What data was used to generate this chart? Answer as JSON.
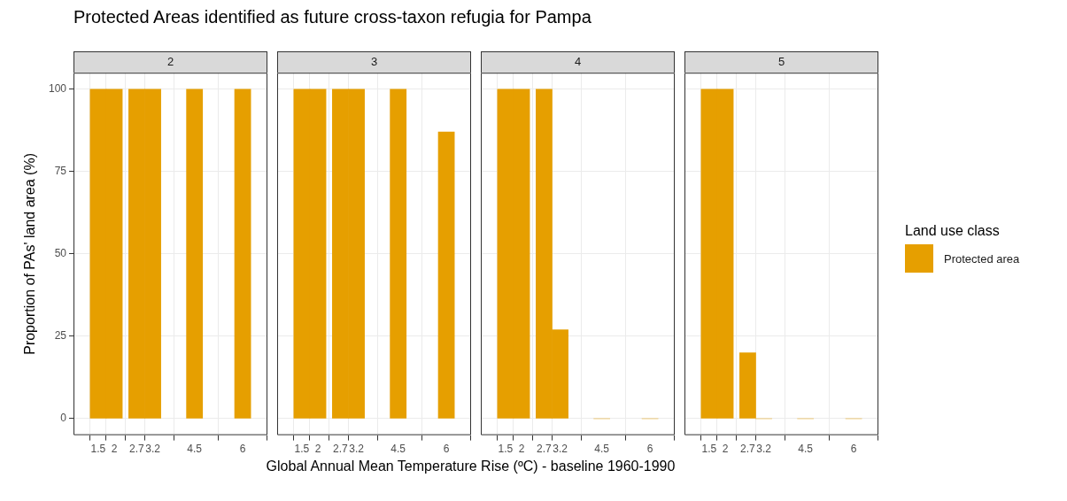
{
  "chart_data": [
    {
      "type": "bar",
      "title": "2",
      "annotations": [
        "Protected Areas identified as future cross-taxon refugia for Pampa"
      ],
      "xlabel": "Global Annual Mean Temperature Rise (ºC) - baseline 1960-1990",
      "ylabel": "Proportion of PAs' land area (%)",
      "x": [
        1.5,
        2,
        2.7,
        3.2,
        4.5,
        6
      ],
      "series": [
        {
          "color": "#e69f00",
          "values": [
            100,
            100,
            100,
            100,
            100,
            100
          ]
        }
      ],
      "xlim": [
        0.73,
        6.77
      ],
      "xticks": [
        1.5,
        2,
        2.7,
        3.2,
        4.5,
        6
      ],
      "ylim": [
        -5,
        105
      ],
      "yticks": [
        0,
        25,
        50,
        75,
        100
      ],
      "grid": true
    },
    {
      "type": "bar",
      "title": "3",
      "x": [
        1.5,
        2,
        2.7,
        3.2,
        4.5,
        6
      ],
      "series": [
        {
          "color": "#e69f00",
          "values": [
            100,
            100,
            100,
            100,
            100,
            87
          ]
        }
      ],
      "xlim": [
        0.73,
        6.77
      ],
      "xticks": [
        1.5,
        2,
        2.7,
        3.2,
        4.5,
        6
      ],
      "ylim": [
        -5,
        105
      ],
      "yticks": [
        0,
        25,
        50,
        75,
        100
      ],
      "grid": true,
      "tick_labels": "x"
    },
    {
      "type": "bar",
      "title": "4",
      "x": [
        1.5,
        2,
        2.7,
        3.2,
        4.5,
        6
      ],
      "series": [
        {
          "color": "#e69f00",
          "values": [
            100,
            100,
            100,
            27,
            0,
            0
          ]
        }
      ],
      "xlim": [
        0.73,
        6.77
      ],
      "xticks": [
        1.5,
        2,
        2.7,
        3.2,
        4.5,
        6
      ],
      "ylim": [
        -5,
        105
      ],
      "yticks": [
        0,
        25,
        50,
        75,
        100
      ],
      "grid": true,
      "tick_labels": "x"
    },
    {
      "type": "bar",
      "title": "5",
      "x": [
        1.5,
        2,
        2.7,
        3.2,
        4.5,
        6
      ],
      "series": [
        {
          "name": "Protected area",
          "color": "#e69f00",
          "values": [
            100,
            100,
            20,
            0,
            0,
            0
          ]
        }
      ],
      "xlim": [
        0.73,
        6.77
      ],
      "xticks": [
        1.5,
        2,
        2.7,
        3.2,
        4.5,
        6
      ],
      "ylim": [
        -5,
        105
      ],
      "yticks": [
        0,
        25,
        50,
        75,
        100
      ],
      "grid": true,
      "tick_labels": "x",
      "legend": "right",
      "legend_title": "Land use class"
    }
  ]
}
